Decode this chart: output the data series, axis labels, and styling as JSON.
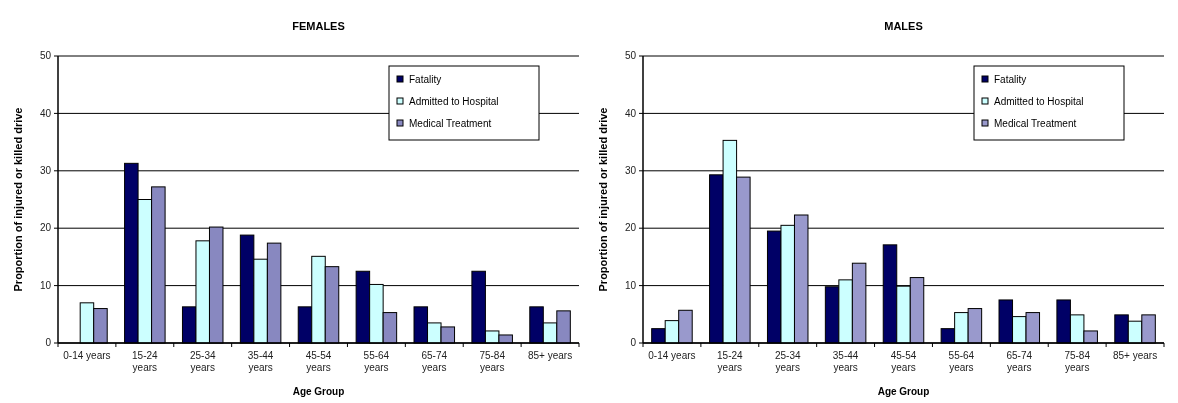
{
  "chart_data": [
    {
      "type": "bar",
      "title": "FEMALES",
      "xlabel": "Age Group",
      "ylabel": "Proportion of injured or killed drive",
      "categories": [
        "0-14 years",
        "15-24 years",
        "25-34 years",
        "35-44 years",
        "45-54 years",
        "55-64 years",
        "65-74 years",
        "75-84 years",
        "85+ years"
      ],
      "series": [
        {
          "name": "Fatality",
          "color": "#000066",
          "values": [
            0,
            31.3,
            6.3,
            18.8,
            6.3,
            12.5,
            6.3,
            12.5,
            6.3
          ]
        },
        {
          "name": "Admitted to Hospital",
          "color": "#ccffff",
          "values": [
            7.0,
            25.0,
            17.8,
            14.6,
            15.1,
            10.2,
            3.5,
            2.1,
            3.5
          ]
        },
        {
          "name": "Medical Treatment",
          "color": "#8888c0",
          "values": [
            6.0,
            27.2,
            20.2,
            17.4,
            13.3,
            5.3,
            2.8,
            1.4,
            5.6
          ]
        }
      ],
      "ylim": [
        0,
        50
      ],
      "yticks": [
        0,
        10,
        20,
        30,
        40,
        50
      ],
      "grid": "y",
      "legend": "top right"
    },
    {
      "type": "bar",
      "title": "MALES",
      "xlabel": "Age Group",
      "ylabel": "Proportion of injured or killed drive",
      "categories": [
        "0-14 years",
        "15-24 years",
        "25-34 years",
        "35-44 years",
        "45-54 years",
        "55-64 years",
        "65-74 years",
        "75-84 years",
        "85+ years"
      ],
      "series": [
        {
          "name": "Fatality",
          "color": "#000066",
          "values": [
            2.5,
            29.3,
            19.5,
            9.8,
            17.1,
            2.5,
            7.5,
            7.5,
            4.9
          ]
        },
        {
          "name": "Admitted to Hospital",
          "color": "#ccffff",
          "values": [
            3.9,
            35.3,
            20.5,
            11.0,
            9.9,
            5.3,
            4.6,
            4.9,
            3.8
          ]
        },
        {
          "name": "Medical Treatment",
          "color": "#9999cc",
          "values": [
            5.7,
            28.9,
            22.3,
            13.9,
            11.4,
            6.0,
            5.3,
            2.1,
            4.9
          ]
        }
      ],
      "ylim": [
        0,
        50
      ],
      "yticks": [
        0,
        10,
        20,
        30,
        40,
        50
      ],
      "grid": "y",
      "legend": "top right"
    }
  ]
}
